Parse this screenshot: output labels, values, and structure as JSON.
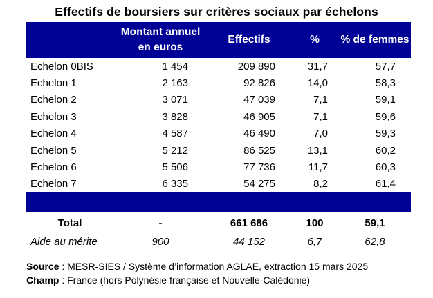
{
  "title": "Effectifs de boursiers sur critères sociaux par échelons",
  "table": {
    "headers": [
      "",
      "Montant annuel en euros",
      "Effectifs",
      "%",
      "% de femmes"
    ],
    "rows": [
      {
        "label": "Echelon 0BIS",
        "montant": "1 454",
        "effectifs": "209 890",
        "pct": "31,7",
        "femmes": "57,7"
      },
      {
        "label": "Echelon 1",
        "montant": "2 163",
        "effectifs": "92 826",
        "pct": "14,0",
        "femmes": "58,3"
      },
      {
        "label": "Echelon 2",
        "montant": "3 071",
        "effectifs": "47 039",
        "pct": "7,1",
        "femmes": "59,1"
      },
      {
        "label": "Echelon 3",
        "montant": "3 828",
        "effectifs": "46 905",
        "pct": "7,1",
        "femmes": "59,6"
      },
      {
        "label": "Echelon 4",
        "montant": "4 587",
        "effectifs": "46 490",
        "pct": "7,0",
        "femmes": "59,3"
      },
      {
        "label": "Echelon 5",
        "montant": "5 212",
        "effectifs": "86 525",
        "pct": "13,1",
        "femmes": "60,2"
      },
      {
        "label": "Echelon 6",
        "montant": "5 506",
        "effectifs": "77 736",
        "pct": "11,7",
        "femmes": "60,3"
      },
      {
        "label": "Echelon 7",
        "montant": "6 335",
        "effectifs": "54 275",
        "pct": "8,2",
        "femmes": "61,4"
      }
    ],
    "total": {
      "label": "Total",
      "montant": "-",
      "effectifs": "661 686",
      "pct": "100",
      "femmes": "59,1"
    },
    "aide": {
      "label": "Aide au mérite",
      "montant": "900",
      "effectifs": "44 152",
      "pct": "6,7",
      "femmes": "62,8"
    }
  },
  "footer": {
    "source_label": "Source",
    "source_text": " : MESR-SIES / Système d’information AGLAE, extraction 15 mars 2025",
    "champ_label": "Champ",
    "champ_text": " : France (hors Polynésie française et Nouvelle-Calédonie)"
  },
  "colors": {
    "header_bg": "#000296",
    "header_text": "#ffffff"
  }
}
